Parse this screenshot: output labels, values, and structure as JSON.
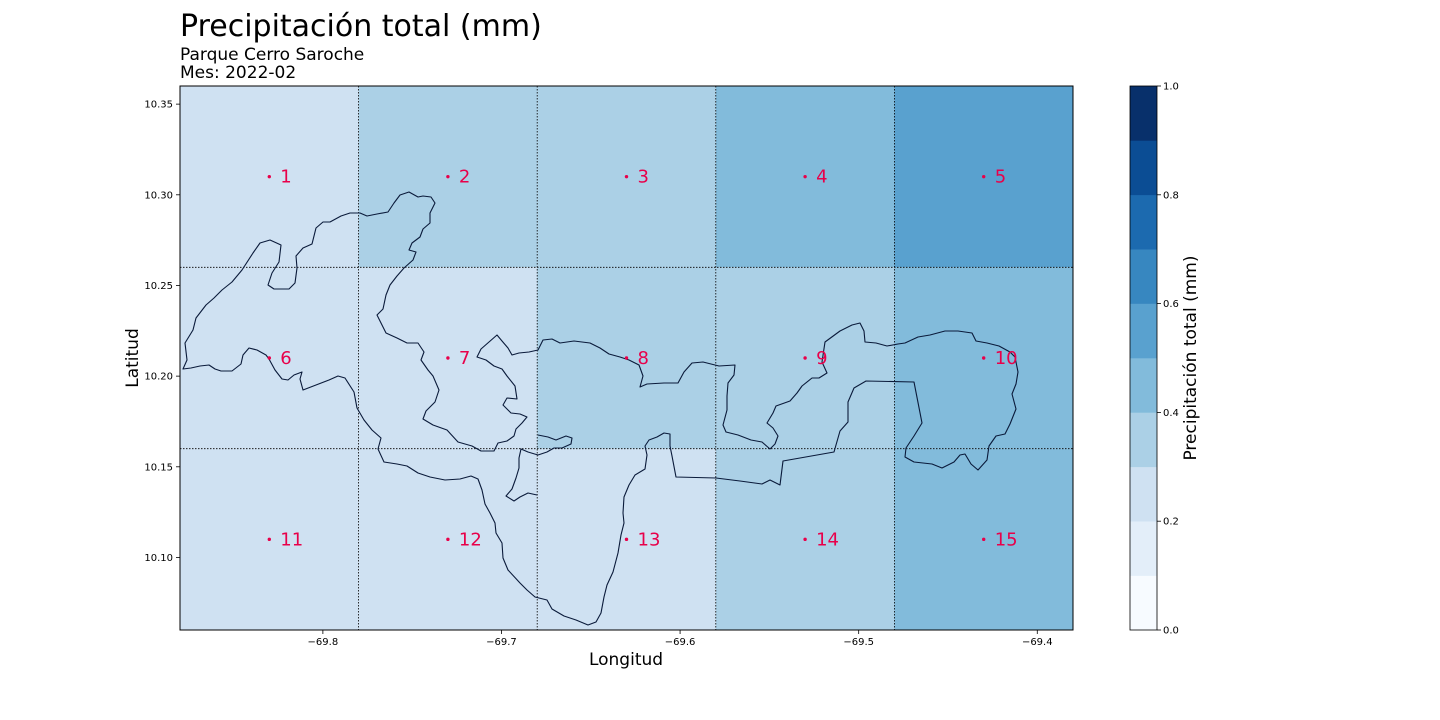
{
  "header": {
    "title": "Precipitación total (mm)",
    "subtitle_location": "Parque Cerro Saroche",
    "subtitle_month": "Mes: 2022-02"
  },
  "map": {
    "xlabel": "Longitud",
    "ylabel": "Latitud",
    "x_range": [
      -69.88,
      -69.38
    ],
    "y_range": [
      10.06,
      10.36
    ],
    "x_ticks": [
      -69.8,
      -69.7,
      -69.6,
      -69.5,
      -69.4
    ],
    "x_tick_labels": [
      "−69.8",
      "−69.7",
      "−69.6",
      "−69.5",
      "−69.4"
    ],
    "y_ticks": [
      10.1,
      10.15,
      10.2,
      10.25,
      10.3,
      10.35
    ],
    "y_tick_labels": [
      "10.10",
      "10.15",
      "10.20",
      "10.25",
      "10.30",
      "10.35"
    ],
    "grid_lon_edges": [
      -69.88,
      -69.78,
      -69.68,
      -69.58,
      -69.48,
      -69.38
    ],
    "grid_lat_edges": [
      10.36,
      10.26,
      10.16,
      10.06
    ],
    "grid_style": "dotted",
    "outline_color": "#0a1a3a"
  },
  "chart_data": {
    "type": "heatmap",
    "title": "Precipitación total (mm)",
    "xlabel": "Longitud",
    "ylabel": "Latitud",
    "rows": [
      [
        0.25,
        0.35,
        0.35,
        0.45,
        0.55
      ],
      [
        0.25,
        0.25,
        0.35,
        0.35,
        0.45
      ],
      [
        0.25,
        0.25,
        0.25,
        0.35,
        0.45
      ]
    ],
    "points": [
      {
        "label": "1",
        "lon": -69.83,
        "lat": 10.31
      },
      {
        "label": "2",
        "lon": -69.73,
        "lat": 10.31
      },
      {
        "label": "3",
        "lon": -69.63,
        "lat": 10.31
      },
      {
        "label": "4",
        "lon": -69.53,
        "lat": 10.31
      },
      {
        "label": "5",
        "lon": -69.43,
        "lat": 10.31
      },
      {
        "label": "6",
        "lon": -69.83,
        "lat": 10.21
      },
      {
        "label": "7",
        "lon": -69.73,
        "lat": 10.21
      },
      {
        "label": "8",
        "lon": -69.63,
        "lat": 10.21
      },
      {
        "label": "9",
        "lon": -69.53,
        "lat": 10.21
      },
      {
        "label": "10",
        "lon": -69.43,
        "lat": 10.21
      },
      {
        "label": "11",
        "lon": -69.83,
        "lat": 10.11
      },
      {
        "label": "12",
        "lon": -69.73,
        "lat": 10.11
      },
      {
        "label": "13",
        "lon": -69.63,
        "lat": 10.11
      },
      {
        "label": "14",
        "lon": -69.53,
        "lat": 10.11
      },
      {
        "label": "15",
        "lon": -69.43,
        "lat": 10.11
      }
    ]
  },
  "colorbar": {
    "label": "Precipitación total (mm)",
    "range": [
      0.0,
      1.0
    ],
    "levels": 10,
    "colors": [
      "#f7fbff",
      "#e3eef9",
      "#cfe1f2",
      "#abd0e6",
      "#82bbdb",
      "#59a1cf",
      "#3787c0",
      "#1c6aaf",
      "#0b4d94",
      "#08306b"
    ],
    "ticks": [
      0.0,
      0.2,
      0.4,
      0.6,
      0.8,
      1.0
    ],
    "tick_labels": [
      "0.0",
      "0.2",
      "0.4",
      "0.6",
      "0.8",
      "1.0"
    ]
  },
  "point_color": "#e8004a"
}
